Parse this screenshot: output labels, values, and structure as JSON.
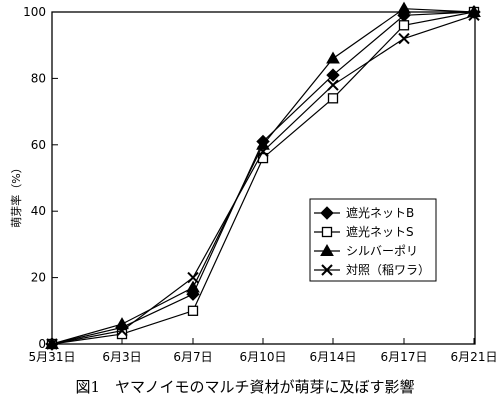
{
  "chart_data": {
    "type": "line",
    "categories": [
      "5月31日",
      "6月3日",
      "6月7日",
      "6月10日",
      "6月14日",
      "6月17日",
      "6月21日"
    ],
    "series": [
      {
        "name": "遮光ネットB",
        "marker": "diamond",
        "values": [
          0,
          5,
          15,
          61,
          81,
          99,
          100
        ]
      },
      {
        "name": "遮光ネットS",
        "marker": "square",
        "values": [
          0,
          3,
          10,
          56,
          74,
          96,
          100
        ]
      },
      {
        "name": "シルバーポリ",
        "marker": "triangle",
        "values": [
          0,
          6,
          17,
          60,
          86,
          101,
          100
        ]
      },
      {
        "name": "対照（稲ワラ）",
        "marker": "cross",
        "values": [
          0,
          4,
          20,
          58,
          78,
          92,
          99
        ]
      }
    ],
    "ylabel": "萌芽率（%）",
    "ylim": [
      0,
      100
    ],
    "yticks": [
      0,
      20,
      40,
      60,
      80,
      100
    ],
    "grid": false,
    "legend_position": "right"
  },
  "caption": "図1　ヤマノイモのマルチ資材が萌芽に及ぼす影響"
}
